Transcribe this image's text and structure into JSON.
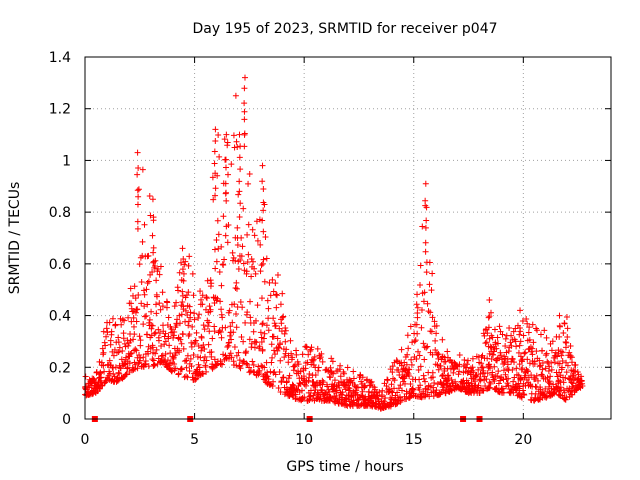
{
  "chart_data": {
    "type": "scatter",
    "title": "Day 195 of 2023, SRMTID for receiver p047",
    "xlabel": "GPS time / hours",
    "ylabel": "SRMTID / TECUs",
    "xlim": [
      0,
      24
    ],
    "ylim": [
      0,
      1.4
    ],
    "xticks": [
      0,
      5,
      10,
      15,
      20
    ],
    "yticks": [
      0,
      0.2,
      0.4,
      0.6,
      0.8,
      1,
      1.2,
      1.4
    ],
    "xtick_labels": [
      "0",
      "5",
      "10",
      "15",
      "20"
    ],
    "ytick_labels": [
      "0",
      "0.2",
      "0.4",
      "0.6",
      "0.8",
      "1",
      "1.2",
      "1.4"
    ],
    "grid": true,
    "marker": "+",
    "color": "#ff0000",
    "data_gaps_hours": [
      0.45,
      4.8,
      10.25,
      17.25,
      18.0
    ],
    "envelope": {
      "description": "approximate per-hour range of SRMTID values",
      "x": [
        0.0,
        0.5,
        1.0,
        1.5,
        2.0,
        2.5,
        3.0,
        3.5,
        4.0,
        4.5,
        5.0,
        5.5,
        6.0,
        6.5,
        7.0,
        7.5,
        8.0,
        8.5,
        9.0,
        9.5,
        10.0,
        10.5,
        11.0,
        11.5,
        12.0,
        12.5,
        13.0,
        13.5,
        14.0,
        14.5,
        15.0,
        15.5,
        16.0,
        16.5,
        17.0,
        17.5,
        18.0,
        18.5,
        19.0,
        19.5,
        20.0,
        20.5,
        21.0,
        21.5,
        22.0,
        22.5
      ],
      "ymin": [
        0.09,
        0.1,
        0.15,
        0.14,
        0.18,
        0.2,
        0.2,
        0.22,
        0.18,
        0.16,
        0.15,
        0.18,
        0.2,
        0.22,
        0.2,
        0.18,
        0.16,
        0.12,
        0.1,
        0.08,
        0.07,
        0.07,
        0.07,
        0.06,
        0.05,
        0.05,
        0.05,
        0.04,
        0.05,
        0.07,
        0.09,
        0.08,
        0.09,
        0.1,
        0.12,
        0.1,
        0.1,
        0.12,
        0.1,
        0.1,
        0.08,
        0.07,
        0.08,
        0.1,
        0.07,
        0.12
      ],
      "ymax": [
        0.18,
        0.17,
        0.43,
        0.4,
        0.42,
        1.03,
        0.85,
        0.6,
        0.45,
        0.66,
        0.6,
        0.6,
        1.12,
        1.1,
        1.32,
        1.0,
        0.98,
        0.6,
        0.58,
        0.28,
        0.3,
        0.28,
        0.25,
        0.22,
        0.2,
        0.18,
        0.16,
        0.14,
        0.2,
        0.3,
        0.4,
        0.91,
        0.4,
        0.28,
        0.26,
        0.24,
        0.25,
        0.46,
        0.36,
        0.35,
        0.42,
        0.38,
        0.34,
        0.35,
        0.4,
        0.18
      ]
    },
    "peaks": [
      {
        "x": 2.4,
        "y": 1.03
      },
      {
        "x": 3.1,
        "y": 0.85
      },
      {
        "x": 4.45,
        "y": 0.66
      },
      {
        "x": 5.95,
        "y": 1.12
      },
      {
        "x": 6.45,
        "y": 1.1
      },
      {
        "x": 7.05,
        "y": 1.1
      },
      {
        "x": 7.3,
        "y": 1.32
      },
      {
        "x": 8.1,
        "y": 0.98
      },
      {
        "x": 15.55,
        "y": 0.91
      },
      {
        "x": 18.45,
        "y": 0.46
      },
      {
        "x": 19.85,
        "y": 0.42
      },
      {
        "x": 21.65,
        "y": 0.4
      }
    ]
  }
}
